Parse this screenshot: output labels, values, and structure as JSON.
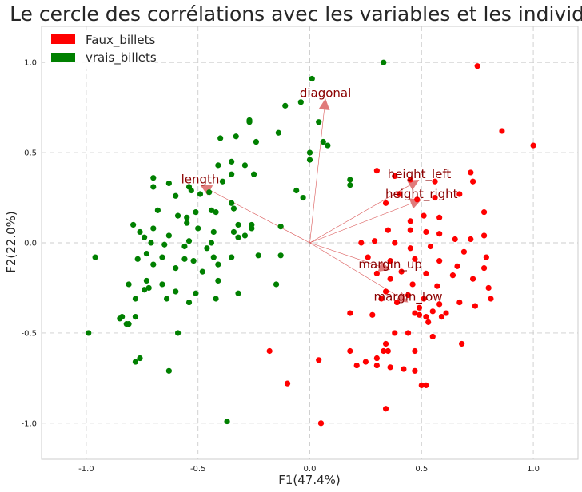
{
  "chart_data": {
    "type": "scatter",
    "title": "Le cercle des corrélations avec les variables et les individus",
    "xlabel": "F1(47.4%)",
    "ylabel": "F2(22.0%)",
    "xlim": [
      -1.2,
      1.2
    ],
    "ylim": [
      -1.2,
      1.2
    ],
    "xticks": [
      "-1.0",
      "-0.5",
      "0.0",
      "0.5",
      "1.0"
    ],
    "yticks": [
      "-1.0",
      "-0.5",
      "0.0",
      "0.5",
      "1.0"
    ],
    "grid": true,
    "legend_position": "top-left",
    "series": [
      {
        "name": "Faux_billets",
        "color": "#ff0000",
        "points": [
          [
            0.75,
            0.98
          ],
          [
            0.86,
            0.62
          ],
          [
            1.0,
            0.54
          ],
          [
            0.72,
            0.39
          ],
          [
            0.73,
            0.34
          ],
          [
            0.3,
            0.4
          ],
          [
            0.38,
            0.37
          ],
          [
            0.45,
            0.35
          ],
          [
            0.56,
            0.34
          ],
          [
            0.34,
            0.22
          ],
          [
            0.4,
            0.27
          ],
          [
            0.48,
            0.24
          ],
          [
            0.56,
            0.25
          ],
          [
            0.67,
            0.27
          ],
          [
            0.78,
            0.17
          ],
          [
            0.45,
            0.12
          ],
          [
            0.51,
            0.15
          ],
          [
            0.58,
            0.14
          ],
          [
            0.35,
            0.07
          ],
          [
            0.45,
            0.07
          ],
          [
            0.52,
            0.06
          ],
          [
            0.58,
            0.05
          ],
          [
            0.65,
            0.02
          ],
          [
            0.72,
            0.02
          ],
          [
            0.78,
            0.04
          ],
          [
            0.23,
            0.0
          ],
          [
            0.29,
            0.01
          ],
          [
            0.38,
            0.0
          ],
          [
            0.45,
            -0.03
          ],
          [
            0.54,
            -0.02
          ],
          [
            0.69,
            -0.05
          ],
          [
            0.79,
            -0.08
          ],
          [
            0.26,
            -0.08
          ],
          [
            0.36,
            -0.1
          ],
          [
            0.47,
            -0.09
          ],
          [
            0.58,
            -0.1
          ],
          [
            0.66,
            -0.13
          ],
          [
            0.78,
            -0.14
          ],
          [
            0.3,
            -0.17
          ],
          [
            0.41,
            -0.16
          ],
          [
            0.52,
            -0.17
          ],
          [
            0.64,
            -0.18
          ],
          [
            0.73,
            -0.2
          ],
          [
            0.8,
            -0.25
          ],
          [
            0.36,
            -0.2
          ],
          [
            0.46,
            -0.23
          ],
          [
            0.57,
            -0.24
          ],
          [
            0.81,
            -0.31
          ],
          [
            0.34,
            -0.27
          ],
          [
            0.44,
            -0.29
          ],
          [
            0.51,
            -0.31
          ],
          [
            0.58,
            -0.34
          ],
          [
            0.67,
            -0.33
          ],
          [
            0.74,
            -0.35
          ],
          [
            0.32,
            -0.31
          ],
          [
            0.39,
            -0.33
          ],
          [
            0.49,
            -0.36
          ],
          [
            0.55,
            -0.38
          ],
          [
            0.61,
            -0.39
          ],
          [
            0.18,
            -0.39
          ],
          [
            0.28,
            -0.4
          ],
          [
            0.47,
            -0.39
          ],
          [
            0.49,
            -0.4
          ],
          [
            0.52,
            -0.41
          ],
          [
            0.59,
            -0.41
          ],
          [
            0.53,
            -0.44
          ],
          [
            0.38,
            -0.5
          ],
          [
            0.44,
            -0.5
          ],
          [
            0.55,
            -0.52
          ],
          [
            0.34,
            -0.56
          ],
          [
            0.68,
            -0.56
          ],
          [
            0.18,
            -0.6
          ],
          [
            0.33,
            -0.6
          ],
          [
            0.35,
            -0.6
          ],
          [
            0.47,
            -0.6
          ],
          [
            -0.18,
            -0.6
          ],
          [
            0.3,
            -0.64
          ],
          [
            0.04,
            -0.65
          ],
          [
            0.21,
            -0.68
          ],
          [
            0.25,
            -0.66
          ],
          [
            0.3,
            -0.68
          ],
          [
            0.36,
            -0.69
          ],
          [
            0.42,
            -0.7
          ],
          [
            0.47,
            -0.71
          ],
          [
            -0.1,
            -0.78
          ],
          [
            0.5,
            -0.79
          ],
          [
            0.52,
            -0.79
          ],
          [
            0.34,
            -0.92
          ],
          [
            0.05,
            -1.0
          ]
        ]
      },
      {
        "name": "vrais_billets",
        "color": "#008000",
        "points": [
          [
            0.33,
            1.0
          ],
          [
            0.01,
            0.91
          ],
          [
            -0.04,
            0.78
          ],
          [
            -0.11,
            0.76
          ],
          [
            0.04,
            0.67
          ],
          [
            -0.27,
            0.68
          ],
          [
            -0.27,
            0.67
          ],
          [
            -0.33,
            0.59
          ],
          [
            -0.4,
            0.58
          ],
          [
            -0.14,
            0.61
          ],
          [
            -0.24,
            0.56
          ],
          [
            0.06,
            0.56
          ],
          [
            0.0,
            0.5
          ],
          [
            0.08,
            0.54
          ],
          [
            -0.35,
            0.45
          ],
          [
            -0.29,
            0.43
          ],
          [
            -0.41,
            0.43
          ],
          [
            -0.35,
            0.38
          ],
          [
            -0.25,
            0.38
          ],
          [
            0.0,
            0.46
          ],
          [
            -0.39,
            0.34
          ],
          [
            -0.63,
            0.33
          ],
          [
            -0.7,
            0.36
          ],
          [
            -0.7,
            0.31
          ],
          [
            -0.54,
            0.31
          ],
          [
            -0.53,
            0.29
          ],
          [
            -0.45,
            0.28
          ],
          [
            -0.49,
            0.27
          ],
          [
            -0.6,
            0.26
          ],
          [
            -0.35,
            0.22
          ],
          [
            -0.34,
            0.19
          ],
          [
            0.18,
            0.35
          ],
          [
            0.18,
            0.32
          ],
          [
            -0.06,
            0.29
          ],
          [
            -0.03,
            0.25
          ],
          [
            -0.32,
            0.1
          ],
          [
            -0.42,
            0.17
          ],
          [
            -0.44,
            0.18
          ],
          [
            -0.51,
            0.17
          ],
          [
            -0.55,
            0.14
          ],
          [
            -0.59,
            0.15
          ],
          [
            -0.68,
            0.18
          ],
          [
            -0.55,
            0.11
          ],
          [
            -0.5,
            0.08
          ],
          [
            -0.43,
            0.06
          ],
          [
            -0.34,
            0.06
          ],
          [
            -0.26,
            0.1
          ],
          [
            -0.26,
            0.08
          ],
          [
            -0.29,
            0.04
          ],
          [
            -0.13,
            0.09
          ],
          [
            -0.79,
            0.1
          ],
          [
            -0.7,
            0.08
          ],
          [
            -0.76,
            0.06
          ],
          [
            -0.74,
            0.03
          ],
          [
            -0.63,
            0.04
          ],
          [
            -0.54,
            0.01
          ],
          [
            -0.44,
            0.0
          ],
          [
            -0.32,
            0.03
          ],
          [
            -0.46,
            -0.03
          ],
          [
            -0.56,
            -0.02
          ],
          [
            -0.65,
            -0.01
          ],
          [
            -0.71,
            0.0
          ],
          [
            -0.96,
            -0.08
          ],
          [
            -0.73,
            -0.06
          ],
          [
            -0.77,
            -0.09
          ],
          [
            -0.66,
            -0.08
          ],
          [
            -0.56,
            -0.09
          ],
          [
            -0.52,
            -0.1
          ],
          [
            -0.43,
            -0.08
          ],
          [
            -0.35,
            -0.08
          ],
          [
            -0.23,
            -0.07
          ],
          [
            -0.13,
            -0.07
          ],
          [
            -0.7,
            -0.12
          ],
          [
            -0.6,
            -0.14
          ],
          [
            -0.48,
            -0.16
          ],
          [
            -0.41,
            -0.12
          ],
          [
            -0.81,
            -0.23
          ],
          [
            -0.73,
            -0.21
          ],
          [
            -0.72,
            -0.25
          ],
          [
            -0.66,
            -0.23
          ],
          [
            -0.6,
            -0.27
          ],
          [
            -0.51,
            -0.28
          ],
          [
            -0.41,
            -0.21
          ],
          [
            -0.32,
            -0.28
          ],
          [
            -0.15,
            -0.23
          ],
          [
            -0.74,
            -0.26
          ],
          [
            -0.78,
            -0.31
          ],
          [
            -0.64,
            -0.31
          ],
          [
            -0.54,
            -0.33
          ],
          [
            -0.42,
            -0.31
          ],
          [
            -0.84,
            -0.41
          ],
          [
            -0.85,
            -0.42
          ],
          [
            -0.78,
            -0.41
          ],
          [
            -0.81,
            -0.45
          ],
          [
            -0.82,
            -0.45
          ],
          [
            -0.99,
            -0.5
          ],
          [
            -0.59,
            -0.5
          ],
          [
            -0.76,
            -0.64
          ],
          [
            -0.78,
            -0.66
          ],
          [
            -0.63,
            -0.71
          ],
          [
            -0.37,
            -0.99
          ]
        ]
      }
    ],
    "loadings": [
      {
        "name": "diagonal",
        "x": 0.07,
        "y": 0.8
      },
      {
        "name": "length",
        "x": -0.49,
        "y": 0.32
      },
      {
        "name": "height_left",
        "x": 0.49,
        "y": 0.35
      },
      {
        "name": "height_right",
        "x": 0.5,
        "y": 0.24
      },
      {
        "name": "margin_up",
        "x": 0.36,
        "y": -0.15
      },
      {
        "name": "margin_low",
        "x": 0.44,
        "y": -0.33
      }
    ]
  }
}
